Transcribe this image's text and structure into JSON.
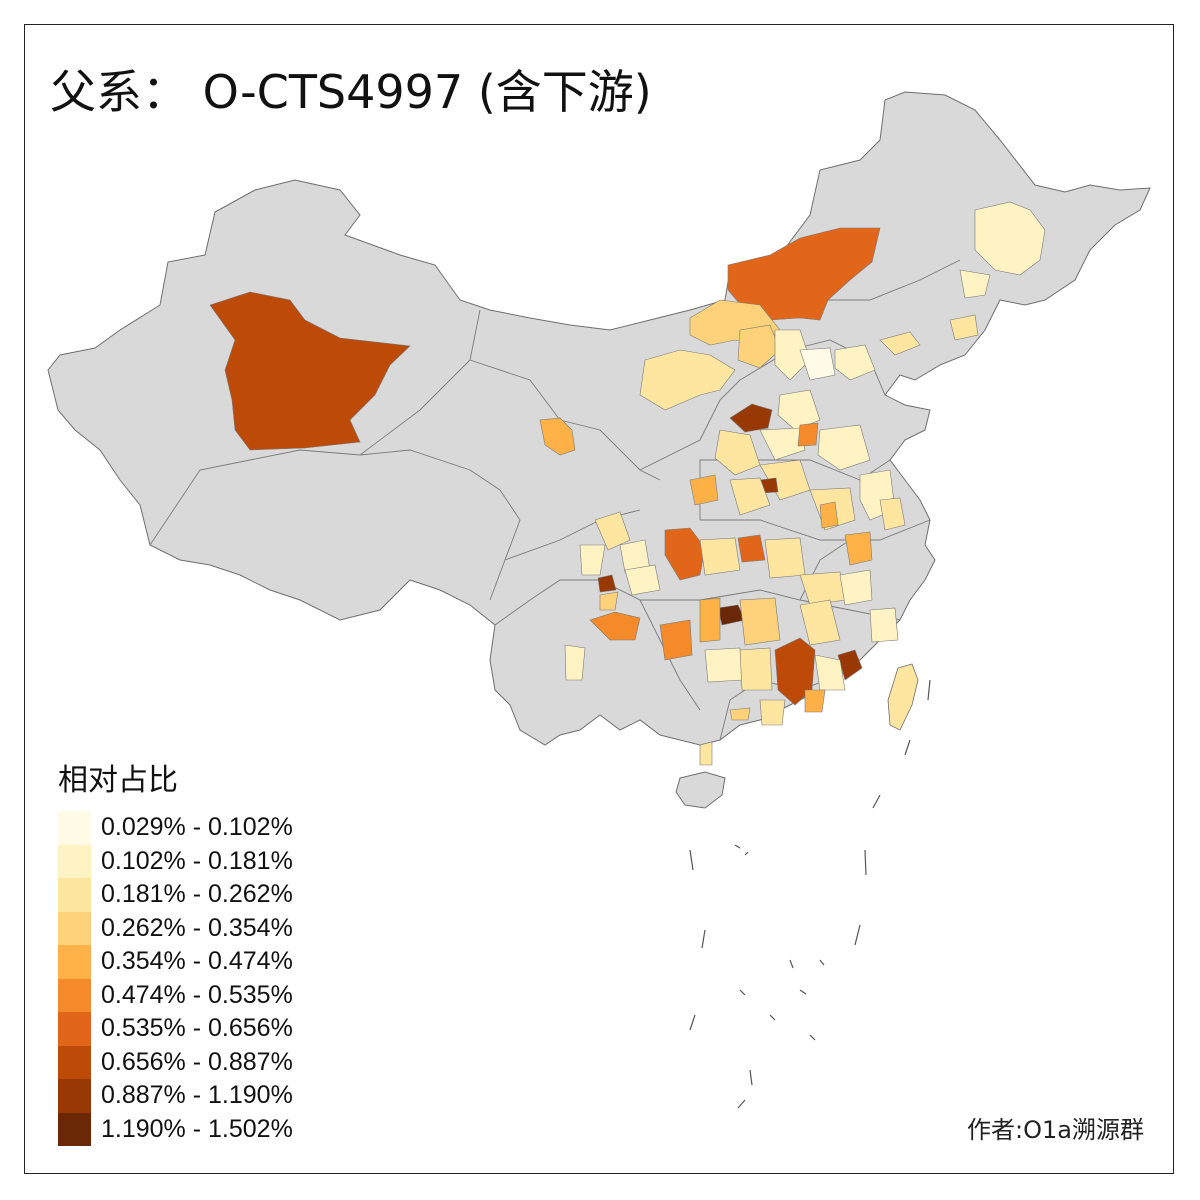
{
  "title": "父系： O-CTS4997 (含下游)",
  "legend": {
    "title": "相对占比",
    "bins": [
      {
        "label": "0.029% - 0.102%",
        "color": "#fffbe6"
      },
      {
        "label": "0.102% - 0.181%",
        "color": "#fff3c4"
      },
      {
        "label": "0.181% - 0.262%",
        "color": "#fee5a0"
      },
      {
        "label": "0.262% - 0.354%",
        "color": "#fed27a"
      },
      {
        "label": "0.354% - 0.474%",
        "color": "#fdb146"
      },
      {
        "label": "0.474% - 0.535%",
        "color": "#f58a2a"
      },
      {
        "label": "0.535% - 0.656%",
        "color": "#e2661a"
      },
      {
        "label": "0.656% - 0.887%",
        "color": "#bd4a06"
      },
      {
        "label": "0.887% - 1.190%",
        "color": "#983805"
      },
      {
        "label": "1.190% - 1.502%",
        "color": "#6b2806"
      }
    ]
  },
  "credit": "作者:O1a溯源群",
  "colors": {
    "no_data": "#d9d9d9",
    "border": "#6e6e6e",
    "frame": "#222222"
  }
}
